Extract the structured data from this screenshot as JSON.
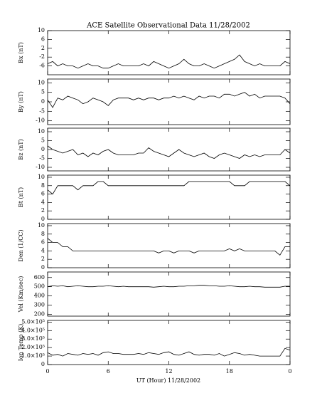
{
  "title": "ACE Satellite Observational Data   11/28/2002",
  "xlabel": "UT (Hour)  11/28/2002",
  "chart_data": [
    {
      "type": "line",
      "ylabel": "Bx (nT)",
      "color": "#000000",
      "x": [
        0,
        0.5,
        1,
        1.5,
        2,
        2.5,
        3,
        3.5,
        4,
        4.5,
        5,
        5.5,
        6,
        6.5,
        7,
        7.5,
        8,
        8.5,
        9,
        9.5,
        10,
        10.5,
        11,
        11.5,
        12,
        12.5,
        13,
        13.5,
        14,
        14.5,
        15,
        15.5,
        16,
        16.5,
        17,
        17.5,
        18,
        18.5,
        19,
        19.5,
        20,
        20.5,
        21,
        21.5,
        22,
        22.5,
        23,
        23.5,
        24
      ],
      "values": [
        -5,
        -4,
        -6,
        -5,
        -6,
        -6,
        -7,
        -6,
        -5,
        -6,
        -6,
        -7,
        -7,
        -6,
        -5,
        -6,
        -6,
        -6,
        -6,
        -5,
        -6,
        -4,
        -5,
        -6,
        -7,
        -6,
        -5,
        -3,
        -5,
        -6,
        -6,
        -5,
        -6,
        -7,
        -6,
        -5,
        -4,
        -3,
        -1,
        -4,
        -5,
        -6,
        -5,
        -6,
        -6,
        -6,
        -6,
        -4,
        -5
      ],
      "xlim": [
        0,
        24
      ],
      "xticks": [
        0,
        6,
        12,
        18,
        {
          "value": 24,
          "label": "0"
        }
      ],
      "ylim": [
        -10,
        10
      ],
      "yticks": [
        -6,
        -2,
        2,
        6,
        10
      ]
    },
    {
      "type": "line",
      "ylabel": "By (nT)",
      "color": "#000000",
      "x": [
        0,
        0.5,
        1,
        1.5,
        2,
        2.5,
        3,
        3.5,
        4,
        4.5,
        5,
        5.5,
        6,
        6.5,
        7,
        7.5,
        8,
        8.5,
        9,
        9.5,
        10,
        10.5,
        11,
        11.5,
        12,
        12.5,
        13,
        13.5,
        14,
        14.5,
        15,
        15.5,
        16,
        16.5,
        17,
        17.5,
        18,
        18.5,
        19,
        19.5,
        20,
        20.5,
        21,
        21.5,
        22,
        22.5,
        23,
        23.5,
        24
      ],
      "values": [
        1,
        -3,
        2,
        1,
        3,
        2,
        1,
        -1,
        0,
        2,
        1,
        0,
        -2,
        1,
        2,
        2,
        2,
        1,
        2,
        1,
        2,
        2,
        1,
        2,
        2,
        3,
        2,
        3,
        2,
        1,
        3,
        2,
        3,
        3,
        2,
        4,
        4,
        3,
        4,
        5,
        3,
        4,
        2,
        3,
        3,
        3,
        3,
        2,
        -1
      ],
      "xlim": [
        0,
        24
      ],
      "xticks": [
        0,
        6,
        12,
        18,
        {
          "value": 24,
          "label": "0"
        }
      ],
      "ylim": [
        -12,
        12
      ],
      "yticks": [
        -10,
        -5,
        0,
        5,
        10
      ]
    },
    {
      "type": "line",
      "ylabel": "Bz (nT)",
      "color": "#000000",
      "x": [
        0,
        0.5,
        1,
        1.5,
        2,
        2.5,
        3,
        3.5,
        4,
        4.5,
        5,
        5.5,
        6,
        6.5,
        7,
        7.5,
        8,
        8.5,
        9,
        9.5,
        10,
        10.5,
        11,
        11.5,
        12,
        12.5,
        13,
        13.5,
        14,
        14.5,
        15,
        15.5,
        16,
        16.5,
        17,
        17.5,
        18,
        18.5,
        19,
        19.5,
        20,
        20.5,
        21,
        21.5,
        22,
        22.5,
        23,
        23.5,
        24
      ],
      "values": [
        2,
        0,
        -1,
        -2,
        -1,
        0,
        -3,
        -2,
        -4,
        -2,
        -3,
        -1,
        0,
        -2,
        -3,
        -3,
        -3,
        -3,
        -2,
        -2,
        1,
        -1,
        -2,
        -3,
        -4,
        -2,
        0,
        -2,
        -3,
        -4,
        -3,
        -2,
        -4,
        -5,
        -3,
        -2,
        -3,
        -4,
        -5,
        -3,
        -4,
        -3,
        -4,
        -3,
        -3,
        -3,
        -3,
        0,
        -2
      ],
      "xlim": [
        0,
        24
      ],
      "xticks": [
        0,
        6,
        12,
        18,
        {
          "value": 24,
          "label": "0"
        }
      ],
      "ylim": [
        -12,
        12
      ],
      "yticks": [
        -10,
        -5,
        0,
        5,
        10
      ]
    },
    {
      "type": "line",
      "ylabel": "Bt (nT)",
      "color": "#000000",
      "x": [
        0,
        0.5,
        1,
        1.5,
        2,
        2.5,
        3,
        3.5,
        4,
        4.5,
        5,
        5.5,
        6,
        6.5,
        7,
        7.5,
        8,
        8.5,
        9,
        9.5,
        10,
        10.5,
        11,
        11.5,
        12,
        12.5,
        13,
        13.5,
        14,
        14.5,
        15,
        15.5,
        16,
        16.5,
        17,
        17.5,
        18,
        18.5,
        19,
        19.5,
        20,
        20.5,
        21,
        21.5,
        22,
        22.5,
        23,
        23.5,
        24
      ],
      "values": [
        7,
        6,
        8,
        8,
        8,
        8,
        7,
        8,
        8,
        8,
        9,
        9,
        8,
        8,
        8,
        8,
        8,
        8,
        8,
        8,
        8,
        8,
        8,
        8,
        8,
        8,
        8,
        8,
        9,
        9,
        9,
        9,
        9,
        9,
        9,
        9,
        9,
        8,
        8,
        8,
        9,
        9,
        9,
        9,
        9,
        9,
        9,
        9,
        8
      ],
      "xlim": [
        0,
        24
      ],
      "xticks": [
        0,
        6,
        12,
        18,
        {
          "value": 24,
          "label": "0"
        }
      ],
      "ylim": [
        0,
        10.5
      ],
      "yticks": [
        0,
        2,
        4,
        6,
        8,
        10
      ]
    },
    {
      "type": "line",
      "ylabel": "Den (1/CC)",
      "color": "#000000",
      "x": [
        0,
        0.5,
        1,
        1.5,
        2,
        2.5,
        3,
        3.5,
        4,
        4.5,
        5,
        5.5,
        6,
        6.5,
        7,
        7.5,
        8,
        8.5,
        9,
        9.5,
        10,
        10.5,
        11,
        11.5,
        12,
        12.5,
        13,
        13.5,
        14,
        14.5,
        15,
        15.5,
        16,
        16.5,
        17,
        17.5,
        18,
        18.5,
        19,
        19.5,
        20,
        20.5,
        21,
        21.5,
        22,
        22.5,
        23,
        23.5,
        24
      ],
      "values": [
        7,
        6,
        6,
        5,
        5,
        4,
        4,
        4,
        4,
        4,
        4,
        4,
        4,
        4,
        4,
        4,
        4,
        4,
        4,
        4,
        4,
        4,
        3.5,
        4,
        4,
        3.5,
        4,
        4,
        4,
        3.5,
        4,
        4,
        4,
        4,
        4,
        4,
        4.5,
        4,
        4.5,
        4,
        4,
        4,
        4,
        4,
        4,
        4,
        3,
        5,
        5
      ],
      "xlim": [
        0,
        24
      ],
      "xticks": [
        0,
        6,
        12,
        18,
        {
          "value": 24,
          "label": "0"
        }
      ],
      "ylim": [
        0,
        10.5
      ],
      "yticks": [
        0,
        2,
        4,
        6,
        8,
        10
      ]
    },
    {
      "type": "line",
      "ylabel": "Vel (Km/sec)",
      "color": "#000000",
      "x": [
        0,
        0.5,
        1,
        1.5,
        2,
        2.5,
        3,
        3.5,
        4,
        4.5,
        5,
        5.5,
        6,
        6.5,
        7,
        7.5,
        8,
        8.5,
        9,
        9.5,
        10,
        10.5,
        11,
        11.5,
        12,
        12.5,
        13,
        13.5,
        14,
        14.5,
        15,
        15.5,
        16,
        16.5,
        17,
        17.5,
        18,
        18.5,
        19,
        19.5,
        20,
        20.5,
        21,
        21.5,
        22,
        22.5,
        23,
        23.5,
        24
      ],
      "values": [
        500,
        510,
        505,
        510,
        500,
        505,
        510,
        505,
        500,
        500,
        505,
        505,
        510,
        505,
        500,
        505,
        500,
        500,
        500,
        500,
        500,
        495,
        500,
        505,
        500,
        500,
        505,
        505,
        510,
        510,
        515,
        515,
        510,
        510,
        505,
        505,
        510,
        505,
        500,
        500,
        505,
        500,
        500,
        495,
        495,
        495,
        495,
        505,
        505
      ],
      "xlim": [
        0,
        24
      ],
      "xticks": [
        0,
        6,
        12,
        18,
        {
          "value": 24,
          "label": "0"
        }
      ],
      "ylim": [
        180,
        660
      ],
      "yticks": [
        200,
        300,
        400,
        500,
        600
      ]
    },
    {
      "type": "line",
      "ylabel": "Ion Temp (K)",
      "color": "#000000",
      "x": [
        0,
        0.5,
        1,
        1.5,
        2,
        2.5,
        3,
        3.5,
        4,
        4.5,
        5,
        5.5,
        6,
        6.5,
        7,
        7.5,
        8,
        8.5,
        9,
        9.5,
        10,
        10.5,
        11,
        11.5,
        12,
        12.5,
        13,
        13.5,
        14,
        14.5,
        15,
        15.5,
        16,
        16.5,
        17,
        17.5,
        18,
        18.5,
        19,
        19.5,
        20,
        20.5,
        21,
        21.5,
        22,
        22.5,
        23,
        23.5,
        24
      ],
      "values": [
        140000,
        110000,
        120000,
        100000,
        130000,
        120000,
        110000,
        130000,
        120000,
        130000,
        110000,
        140000,
        150000,
        130000,
        130000,
        120000,
        120000,
        120000,
        130000,
        120000,
        140000,
        130000,
        120000,
        140000,
        150000,
        120000,
        110000,
        130000,
        150000,
        120000,
        110000,
        120000,
        120000,
        110000,
        130000,
        100000,
        120000,
        140000,
        130000,
        110000,
        120000,
        110000,
        100000,
        100000,
        100000,
        100000,
        100000,
        190000,
        170000
      ],
      "xlim": [
        0,
        24
      ],
      "xticks": [
        0,
        6,
        12,
        18,
        {
          "value": 24,
          "label": "0"
        }
      ],
      "ylim": [
        0,
        520000
      ],
      "yticks": [
        0,
        {
          "value": 100000,
          "label": "1.0×10⁵"
        },
        {
          "value": 200000,
          "label": "2.0×10⁵"
        },
        {
          "value": 300000,
          "label": "3.0×10⁵"
        },
        {
          "value": 400000,
          "label": "4.0×10⁵"
        },
        {
          "value": 500000,
          "label": "5.0×10⁵"
        }
      ]
    }
  ]
}
